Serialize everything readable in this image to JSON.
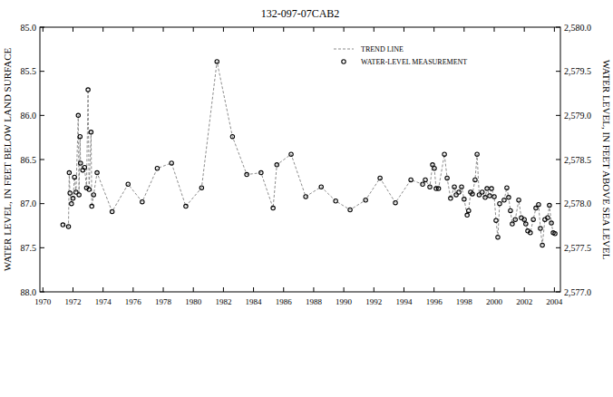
{
  "chart_data": {
    "type": "line",
    "title": "132-097-07CAB2",
    "y_label": "WATER LEVEL, IN FEET BELOW LAND SURFACE",
    "y2_label": "WATER LEVEL, IN FEET ABOVE SEA LEVEL",
    "x": [
      1971.33,
      1971.7,
      1971.75,
      1971.8,
      1971.9,
      1972.0,
      1972.1,
      1972.2,
      1972.35,
      1972.4,
      1972.47,
      1972.5,
      1972.65,
      1972.77,
      1972.9,
      1973.0,
      1973.07,
      1973.2,
      1973.25,
      1973.37,
      1973.6,
      1974.6,
      1975.66,
      1976.6,
      1977.6,
      1978.55,
      1979.5,
      1980.55,
      1981.57,
      1982.6,
      1983.55,
      1984.5,
      1985.3,
      1985.55,
      1986.5,
      1987.47,
      1988.5,
      1989.46,
      1990.42,
      1991.45,
      1992.41,
      1993.43,
      1994.46,
      1995.24,
      1995.42,
      1995.72,
      1995.9,
      1996.02,
      1996.14,
      1996.3,
      1996.69,
      1996.87,
      1997.1,
      1997.35,
      1997.47,
      1997.65,
      1997.83,
      1998.0,
      1998.2,
      1998.3,
      1998.43,
      1998.55,
      1998.73,
      1998.86,
      1999.0,
      1999.2,
      1999.4,
      1999.52,
      1999.7,
      1999.82,
      2000.0,
      2000.12,
      2000.24,
      2000.36,
      2000.66,
      2000.84,
      2000.96,
      2001.08,
      2001.2,
      2001.4,
      2001.63,
      2001.8,
      2002.0,
      2002.1,
      2002.23,
      2002.4,
      2002.6,
      2002.77,
      2002.95,
      2003.07,
      2003.2,
      2003.37,
      2003.55,
      2003.67,
      2003.8,
      2003.92,
      2004.04
    ],
    "series": [
      {
        "name": "TREND LINE",
        "type": "line",
        "line_style": "dashed",
        "color": "#808080",
        "values": [
          87.24,
          87.26,
          86.65,
          86.88,
          87.0,
          86.94,
          86.7,
          86.87,
          86.0,
          86.9,
          86.24,
          86.54,
          86.62,
          86.59,
          86.82,
          85.71,
          86.84,
          86.19,
          87.03,
          86.9,
          86.65,
          87.09,
          86.78,
          86.98,
          86.6,
          86.54,
          87.03,
          86.82,
          85.39,
          86.24,
          86.67,
          86.65,
          87.05,
          86.56,
          86.44,
          86.92,
          86.81,
          86.97,
          87.07,
          86.96,
          86.71,
          86.99,
          86.73,
          86.78,
          86.73,
          86.81,
          86.56,
          86.6,
          86.83,
          86.83,
          86.44,
          86.71,
          86.94,
          86.81,
          86.9,
          86.87,
          86.81,
          86.95,
          87.13,
          87.08,
          86.87,
          86.89,
          86.73,
          86.44,
          86.9,
          86.87,
          86.93,
          86.83,
          86.91,
          86.83,
          86.92,
          87.19,
          87.38,
          87.0,
          86.96,
          86.82,
          86.93,
          87.08,
          87.23,
          87.18,
          86.96,
          87.16,
          87.18,
          87.23,
          87.31,
          87.33,
          87.18,
          87.05,
          87.01,
          87.28,
          87.47,
          87.18,
          87.16,
          87.02,
          87.22,
          87.33,
          87.34
        ]
      },
      {
        "name": "WATER-LEVEL MEASUREMENT",
        "type": "scatter",
        "marker": "circle",
        "color": "#000000",
        "values": [
          87.24,
          87.26,
          86.65,
          86.88,
          87.0,
          86.94,
          86.7,
          86.87,
          86.0,
          86.9,
          86.24,
          86.54,
          86.62,
          86.59,
          86.82,
          85.71,
          86.84,
          86.19,
          87.03,
          86.9,
          86.65,
          87.09,
          86.78,
          86.98,
          86.6,
          86.54,
          87.03,
          86.82,
          85.39,
          86.24,
          86.67,
          86.65,
          87.05,
          86.56,
          86.44,
          86.92,
          86.81,
          86.97,
          87.07,
          86.96,
          86.71,
          86.99,
          86.73,
          86.78,
          86.73,
          86.81,
          86.56,
          86.6,
          86.83,
          86.83,
          86.44,
          86.71,
          86.94,
          86.81,
          86.9,
          86.87,
          86.81,
          86.95,
          87.13,
          87.08,
          86.87,
          86.89,
          86.73,
          86.44,
          86.9,
          86.87,
          86.93,
          86.83,
          86.91,
          86.83,
          86.92,
          87.19,
          87.38,
          87.0,
          86.96,
          86.82,
          86.93,
          87.08,
          87.23,
          87.18,
          86.96,
          87.16,
          87.18,
          87.23,
          87.31,
          87.33,
          87.18,
          87.05,
          87.01,
          87.28,
          87.47,
          87.18,
          87.16,
          87.02,
          87.22,
          87.33,
          87.34
        ]
      }
    ],
    "xlim": [
      1969.8,
      2004.4
    ],
    "xticks": [
      1970,
      1972,
      1974,
      1976,
      1978,
      1980,
      1982,
      1984,
      1986,
      1988,
      1990,
      1992,
      1994,
      1996,
      1998,
      2000,
      2002,
      2004
    ],
    "ylim": [
      88,
      85
    ],
    "yticks": [
      {
        "value": 85,
        "label": "85.0"
      },
      {
        "value": 85.5,
        "label": "85.5"
      },
      {
        "value": 86,
        "label": "86.0"
      },
      {
        "value": 86.5,
        "label": "86.5"
      },
      {
        "value": 87,
        "label": "87.0"
      },
      {
        "value": 87.5,
        "label": "87.5"
      },
      {
        "value": 88,
        "label": "88.0"
      }
    ],
    "y2lim": [
      2577,
      2580
    ],
    "y2ticks": [
      {
        "value": 2577,
        "label": "2,577.0"
      },
      {
        "value": 2577.5,
        "label": "2,577.5"
      },
      {
        "value": 2578,
        "label": "2,578.0"
      },
      {
        "value": 2578.5,
        "label": "2,578.5"
      },
      {
        "value": 2579,
        "label": "2,579.0"
      },
      {
        "value": 2579.5,
        "label": "2,579.5"
      },
      {
        "value": 2580,
        "label": "2,580.0"
      }
    ],
    "legend": "top-right",
    "grid": false
  }
}
